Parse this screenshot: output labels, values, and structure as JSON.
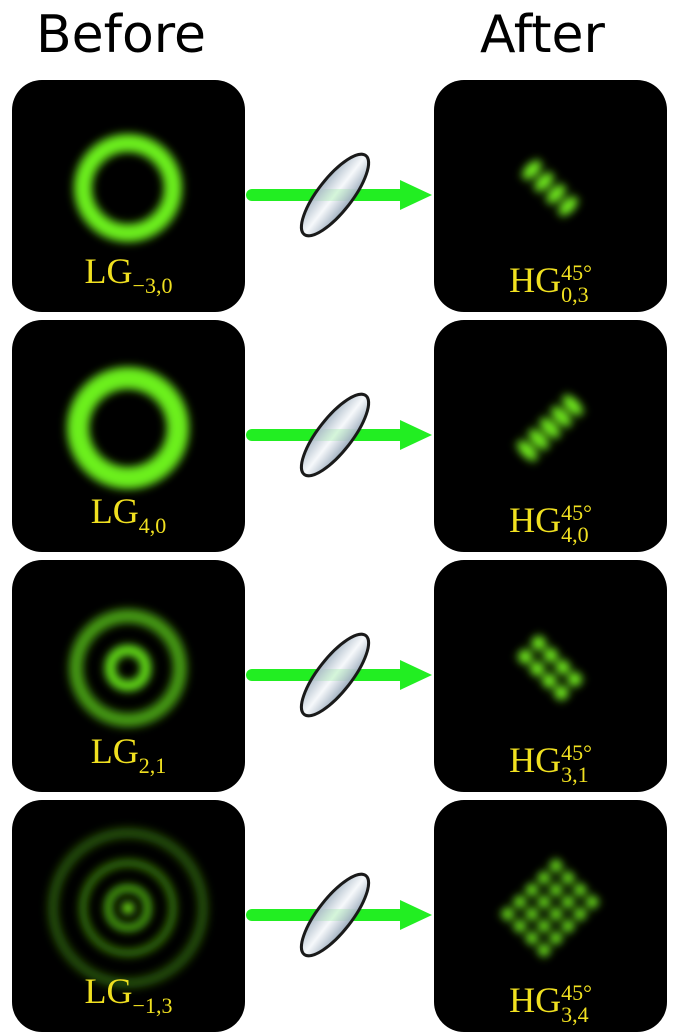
{
  "header": {
    "before": "Before",
    "after": "After"
  },
  "rows": [
    {
      "before": {
        "base": "LG",
        "sub": "−3,0"
      },
      "after": {
        "base": "HG",
        "sup": "45°",
        "sub": "0,3"
      }
    },
    {
      "before": {
        "base": "LG",
        "sub": "4,0"
      },
      "after": {
        "base": "HG",
        "sup": "45°",
        "sub": "4,0"
      }
    },
    {
      "before": {
        "base": "LG",
        "sub": "2,1"
      },
      "after": {
        "base": "HG",
        "sup": "45°",
        "sub": "3,1"
      }
    },
    {
      "before": {
        "base": "LG",
        "sub": "−1,3"
      },
      "after": {
        "base": "HG",
        "sup": "45°",
        "sub": "3,4"
      }
    }
  ]
}
